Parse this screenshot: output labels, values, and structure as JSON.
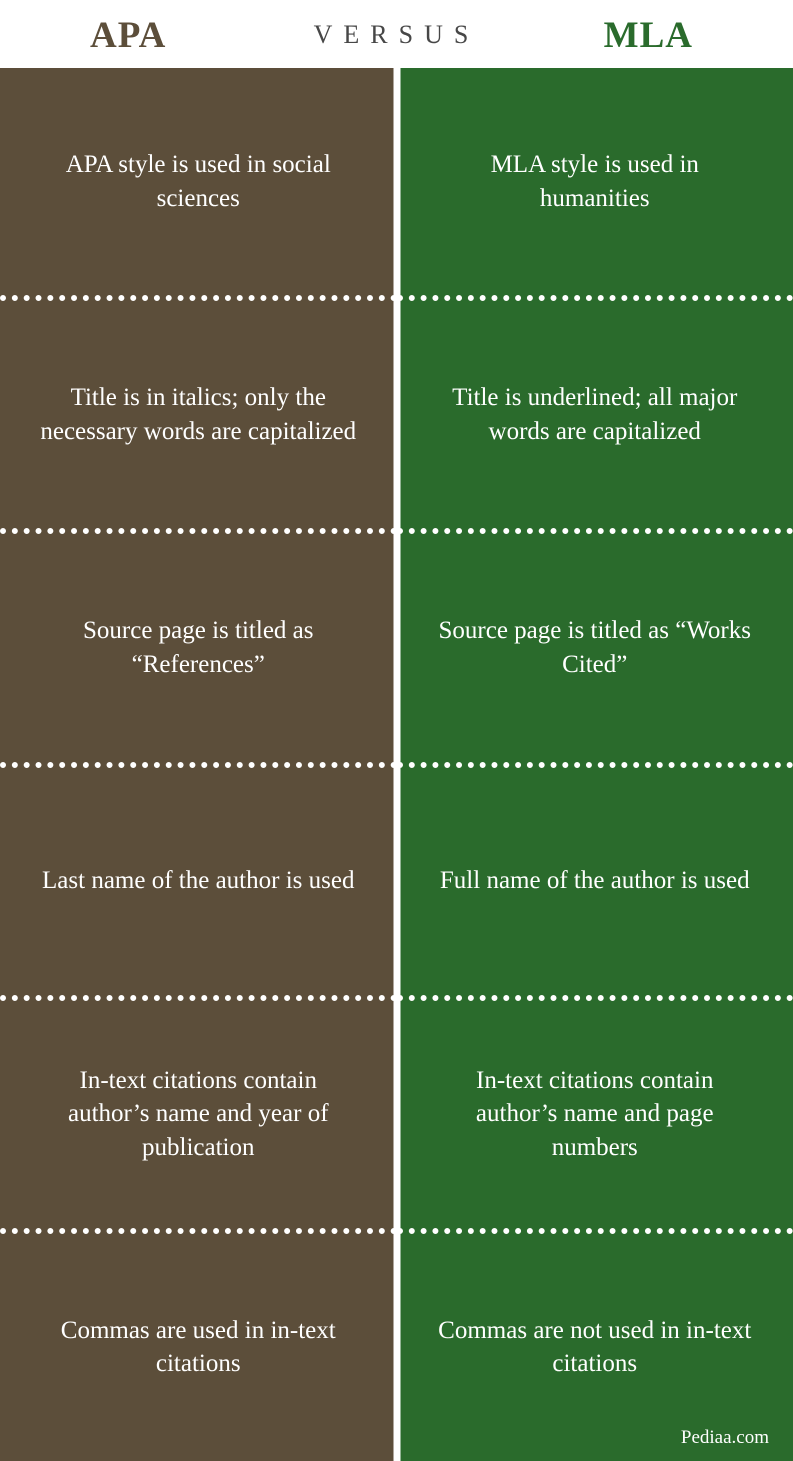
{
  "header": {
    "left_label": "APA",
    "center_label": "VERSUS",
    "right_label": "MLA",
    "left_color": "#5c4e3a",
    "right_color": "#2a6b2c",
    "center_color": "#474747"
  },
  "columns": {
    "left": {
      "bg_color": "#5c4e3a",
      "cells": [
        "APA style is used in social sciences",
        "Title is in italics; only the necessary words are capitalized",
        "Source page is titled as “References”",
        "Last name of the author is used",
        "In-text citations contain author’s name and year of publication",
        "Commas are used in in-text citations"
      ]
    },
    "right": {
      "bg_color": "#2a6b2c",
      "cells": [
        "MLA style is used in humanities",
        "Title is underlined; all major words are capitalized",
        "Source page is titled as “Works Cited”",
        "Full name of the author is used",
        "In-text citations contain author’s name and page numbers",
        "Commas are not used in in-text citations"
      ]
    }
  },
  "footer": {
    "credit": "Pediaa.com"
  },
  "styling": {
    "text_color": "#ffffff",
    "divider_color": "#ffffff",
    "cell_fontsize": 25,
    "header_fontsize": 37,
    "versus_fontsize": 26
  }
}
